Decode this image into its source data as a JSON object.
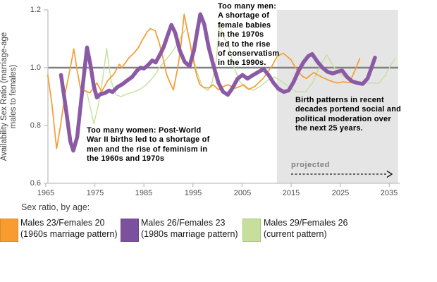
{
  "y_axis": {
    "title": "Availability Sex Ratio (marriage-age\nmales to females)",
    "ticks": [
      "1.2",
      "1.0",
      "0.8",
      "0.6"
    ]
  },
  "x_axis": {
    "ticks": [
      "1965",
      "1975",
      "1985",
      "1995",
      "2005",
      "2015",
      "2025",
      "2035"
    ]
  },
  "annotations": {
    "too_many_men": "Too many men:\nA shortage of\nfemale babies\nin the 1970s\nled to the rise\nof conservatism\nin the 1990s.",
    "too_many_women": "Too many women: Post-World\nWar II births led to a shortage of\nmen and the rise of feminism in\nthe 1960s and 1970s",
    "birth_patterns": "Birth patterns in recent\ndecades portend social and\npolitical moderation over\nthe next 25 years.",
    "projected_label": "projected"
  },
  "legend": {
    "heading": "Sex ratio, by age:",
    "items": [
      {
        "label": "Males 23/Females 20\n(1960s marriage pattern)",
        "color": "#F89B30"
      },
      {
        "label": "Males 26/Females 23\n(1980s marriage pattern)",
        "color": "#7B519D"
      },
      {
        "label": "Males 29/Females 26\n(current pattern)",
        "color": "#C6DF9B"
      }
    ]
  },
  "colors": {
    "axis": "#BFBFBF",
    "reference_line": "#808080",
    "projected_shading": "#E5E5E5",
    "arrow": "#1a1a1a",
    "orange_series": "#F89B30",
    "purple_series": "#8A5AA5",
    "green_series": "#C6DF9B"
  },
  "chart_data": {
    "type": "line",
    "title": "",
    "ylabel": "Availability Sex Ratio (marriage-age males to females)",
    "xlabel": "",
    "ylim": [
      0.6,
      1.2
    ],
    "xlim": [
      1965,
      2037
    ],
    "y_ticks": [
      1.2,
      1.0,
      0.8,
      0.6
    ],
    "x_ticks": [
      1965,
      1975,
      1985,
      1995,
      2005,
      2015,
      2025,
      2035
    ],
    "reference_line": 1.0,
    "grid": false,
    "legend_position": "bottom",
    "projected_region": {
      "start_year": 2012.1,
      "end_year": 2036.8
    },
    "series": [
      {
        "name": "Males 23/Females 20 (1960s marriage pattern)",
        "color": "#F89B30",
        "width": 1.7,
        "points": [
          [
            1965.4,
            0.975
          ],
          [
            1966.2,
            0.88
          ],
          [
            1967.2,
            0.72
          ],
          [
            1968,
            0.8
          ],
          [
            1969,
            0.915
          ],
          [
            1970,
            1.0
          ],
          [
            1970.7,
            1.065
          ],
          [
            1971.4,
            0.99
          ],
          [
            1972.1,
            0.925
          ],
          [
            1973,
            0.92
          ],
          [
            1974,
            0.913
          ],
          [
            1975.4,
            0.947
          ],
          [
            1976.4,
            0.917
          ],
          [
            1977.6,
            0.955
          ],
          [
            1978.9,
            0.978
          ],
          [
            1980,
            1.012
          ],
          [
            1980.5,
            1.0
          ],
          [
            1981.9,
            1.033
          ],
          [
            1983.1,
            1.053
          ],
          [
            1983.9,
            1.07
          ],
          [
            1984.7,
            1.096
          ],
          [
            1985.7,
            1.125
          ],
          [
            1986.3,
            1.135
          ],
          [
            1987.3,
            1.128
          ],
          [
            1988.1,
            1.087
          ],
          [
            1988.9,
            1.033
          ],
          [
            1989.6,
            0.978
          ],
          [
            1990.4,
            0.945
          ],
          [
            1991,
            0.923
          ],
          [
            1991.9,
            1.0
          ],
          [
            1992.5,
            1.07
          ],
          [
            1993.2,
            1.185
          ],
          [
            1994.2,
            1.1
          ],
          [
            1994.8,
            1.047
          ],
          [
            1995.8,
            0.97
          ],
          [
            1996.4,
            0.942
          ],
          [
            1997.2,
            0.931
          ],
          [
            1998.3,
            0.93
          ],
          [
            1999.1,
            0.941
          ],
          [
            2000.3,
            0.923
          ],
          [
            2001.2,
            0.935
          ],
          [
            2002.1,
            0.941
          ],
          [
            2003.6,
            0.929
          ],
          [
            2004.6,
            0.935
          ],
          [
            2005.3,
            0.941
          ],
          [
            2006.4,
            0.925
          ],
          [
            2007.6,
            0.935
          ],
          [
            2009.3,
            0.963
          ],
          [
            2011,
            1.003
          ],
          [
            2012.2,
            1.04
          ],
          [
            2013.4,
            1.05
          ],
          [
            2015,
            1.027
          ],
          [
            2015.8,
            1.002
          ],
          [
            2017.2,
            0.972
          ],
          [
            2018.1,
            0.963
          ],
          [
            2019.6,
            0.983
          ],
          [
            2021.3,
            0.967
          ],
          [
            2022.9,
            0.955
          ],
          [
            2024.4,
            0.947
          ],
          [
            2025.7,
            0.951
          ],
          [
            2026.9,
            0.948
          ],
          [
            2028,
            0.99
          ],
          [
            2029,
            1.032
          ]
        ]
      },
      {
        "name": "Males 26/Females 23 (1980s marriage pattern)",
        "color": "#8A5AA5",
        "width": 5.5,
        "points": [
          [
            1968.1,
            0.975
          ],
          [
            1969,
            0.87
          ],
          [
            1970,
            0.745
          ],
          [
            1970.6,
            0.713
          ],
          [
            1971.4,
            0.76
          ],
          [
            1972.1,
            0.87
          ],
          [
            1972.9,
            0.995
          ],
          [
            1973.4,
            1.07
          ],
          [
            1974.1,
            1.01
          ],
          [
            1974.8,
            0.935
          ],
          [
            1975.4,
            0.897
          ],
          [
            1976.1,
            0.908
          ],
          [
            1977,
            0.912
          ],
          [
            1977.9,
            0.921
          ],
          [
            1978.6,
            0.916
          ],
          [
            1979.6,
            0.933
          ],
          [
            1980.7,
            0.944
          ],
          [
            1981.7,
            0.957
          ],
          [
            1982.6,
            0.968
          ],
          [
            1983.6,
            0.99
          ],
          [
            1984.3,
            1.0
          ],
          [
            1985,
            0.997
          ],
          [
            1985.9,
            1.01
          ],
          [
            1986.7,
            1.025
          ],
          [
            1987.4,
            1.018
          ],
          [
            1988.1,
            1.04
          ],
          [
            1989,
            1.07
          ],
          [
            1989.9,
            1.115
          ],
          [
            1990.6,
            1.148
          ],
          [
            1991.4,
            1.12
          ],
          [
            1992.3,
            1.06
          ],
          [
            1993.3,
            1.02
          ],
          [
            1994.3,
            1.005
          ],
          [
            1995.2,
            1.06
          ],
          [
            1995.9,
            1.13
          ],
          [
            1996.5,
            1.185
          ],
          [
            1997.3,
            1.15
          ],
          [
            1998.2,
            1.07
          ],
          [
            1999.3,
            1.0
          ],
          [
            2000.2,
            0.947
          ],
          [
            2001.1,
            0.917
          ],
          [
            2002.1,
            0.906
          ],
          [
            2003,
            0.928
          ],
          [
            2004.1,
            0.962
          ],
          [
            2005.1,
            0.975
          ],
          [
            2006.1,
            0.962
          ],
          [
            2007,
            0.972
          ],
          [
            2008.1,
            0.983
          ],
          [
            2009.4,
            0.995
          ],
          [
            2010.4,
            0.975
          ],
          [
            2011.4,
            0.948
          ],
          [
            2012.4,
            0.927
          ],
          [
            2013.5,
            0.916
          ],
          [
            2014.5,
            0.921
          ],
          [
            2015.5,
            0.95
          ],
          [
            2016.5,
            0.988
          ],
          [
            2017.5,
            1.018
          ],
          [
            2018.5,
            1.04
          ],
          [
            2019.3,
            1.047
          ],
          [
            2020.4,
            1.02
          ],
          [
            2021.4,
            1.0
          ],
          [
            2022.4,
            0.986
          ],
          [
            2023.5,
            0.98
          ],
          [
            2024.5,
            0.986
          ],
          [
            2025.4,
            0.99
          ],
          [
            2026.4,
            0.968
          ],
          [
            2027.4,
            0.953
          ],
          [
            2028.5,
            0.947
          ],
          [
            2029.6,
            0.944
          ],
          [
            2030.6,
            0.963
          ],
          [
            2031.4,
            1.0
          ],
          [
            2032.1,
            1.035
          ]
        ]
      },
      {
        "name": "Males 29/Females 26 (current pattern)",
        "color": "#C6DF9B",
        "width": 1.4,
        "points": [
          [
            1973.3,
            0.92
          ],
          [
            1974.1,
            0.86
          ],
          [
            1974.8,
            0.806
          ],
          [
            1975.7,
            0.87
          ],
          [
            1976.6,
            0.96
          ],
          [
            1977.4,
            1.066
          ],
          [
            1978.3,
            0.955
          ],
          [
            1979.3,
            0.906
          ],
          [
            1980.3,
            0.9
          ],
          [
            1981.6,
            0.909
          ],
          [
            1983,
            0.917
          ],
          [
            1984.1,
            0.924
          ],
          [
            1985.4,
            0.94
          ],
          [
            1986.4,
            0.957
          ],
          [
            1987.4,
            0.978
          ],
          [
            1988.1,
            1.0
          ],
          [
            1989.3,
            1.024
          ],
          [
            1990.6,
            1.05
          ],
          [
            1991.9,
            1.085
          ],
          [
            1992.9,
            1.118
          ],
          [
            1993.8,
            1.138
          ],
          [
            1994.7,
            1.065
          ],
          [
            1995.7,
            0.99
          ],
          [
            1996.9,
            0.935
          ],
          [
            1998,
            0.921
          ],
          [
            1998.9,
            0.948
          ],
          [
            1999.7,
            1.02
          ],
          [
            2000.4,
            1.148
          ],
          [
            2001.4,
            1.1
          ],
          [
            2002.1,
            1.087
          ],
          [
            2003.4,
            1.0
          ],
          [
            2004.6,
            0.95
          ],
          [
            2005.9,
            0.928
          ],
          [
            2007.4,
            0.922
          ],
          [
            2008.9,
            0.938
          ],
          [
            2010.3,
            0.957
          ],
          [
            2011.6,
            0.968
          ],
          [
            2013.1,
            0.952
          ],
          [
            2014.6,
            0.934
          ],
          [
            2016,
            0.917
          ],
          [
            2017.9,
            0.916
          ],
          [
            2019.4,
            0.948
          ],
          [
            2020.9,
            1.008
          ],
          [
            2022.3,
            1.045
          ],
          [
            2023.5,
            1.007
          ],
          [
            2024.9,
            0.978
          ],
          [
            2026.3,
            0.962
          ],
          [
            2027.9,
            0.954
          ],
          [
            2029.4,
            0.949
          ],
          [
            2031.3,
            0.947
          ],
          [
            2032.9,
            0.946
          ],
          [
            2034.2,
            0.974
          ],
          [
            2035.3,
            1.008
          ],
          [
            2036.2,
            1.032
          ]
        ]
      }
    ]
  }
}
